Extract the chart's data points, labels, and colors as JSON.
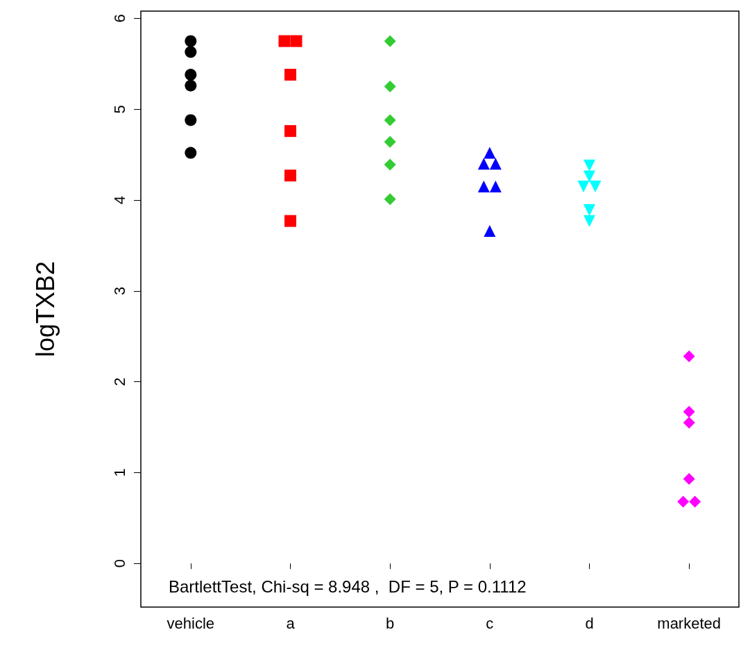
{
  "chart_data": {
    "type": "scatter",
    "ylabel": "logTXB2",
    "categories": [
      "vehicle",
      "a",
      "b",
      "c",
      "d",
      "marketed"
    ],
    "ylim": [
      -0.48,
      6.08
    ],
    "yticks": [
      0,
      1,
      2,
      3,
      4,
      5,
      6
    ],
    "grid": false,
    "annotations": [
      "BartlettTest, Chi-sq = 8.948 ,  DF = 5, P = 0.1112"
    ],
    "series": [
      {
        "color": "#000000",
        "marker": "circle",
        "x": [
          "vehicle",
          "vehicle",
          "vehicle",
          "vehicle",
          "vehicle",
          "vehicle"
        ],
        "values": [
          5.75,
          5.63,
          5.38,
          5.26,
          4.88,
          4.52
        ]
      },
      {
        "color": "#ff0000",
        "marker": "square",
        "x": [
          "a",
          "a",
          "a",
          "a",
          "a",
          "a"
        ],
        "values": [
          5.75,
          5.75,
          5.38,
          4.76,
          4.27,
          3.77
        ]
      },
      {
        "color": "#33cc33",
        "marker": "diamond",
        "x": [
          "b",
          "b",
          "b",
          "b",
          "b",
          "b"
        ],
        "values": [
          5.75,
          5.25,
          4.88,
          4.64,
          4.39,
          4.01
        ]
      },
      {
        "color": "#0000ff",
        "marker": "triangle",
        "x": [
          "c",
          "c",
          "c",
          "c",
          "c",
          "c"
        ],
        "values": [
          4.52,
          4.4,
          4.4,
          4.15,
          4.15,
          3.66
        ]
      },
      {
        "color": "#00ffff",
        "marker": "triangle-down",
        "x": [
          "d",
          "d",
          "d",
          "d",
          "d",
          "d"
        ],
        "values": [
          4.38,
          4.26,
          4.15,
          4.15,
          3.89,
          3.77
        ]
      },
      {
        "color": "#ff00ff",
        "marker": "diamond",
        "x": [
          "marketed",
          "marketed",
          "marketed",
          "marketed",
          "marketed",
          "marketed"
        ],
        "values": [
          2.28,
          1.67,
          1.55,
          0.93,
          0.68,
          0.68
        ]
      }
    ]
  }
}
